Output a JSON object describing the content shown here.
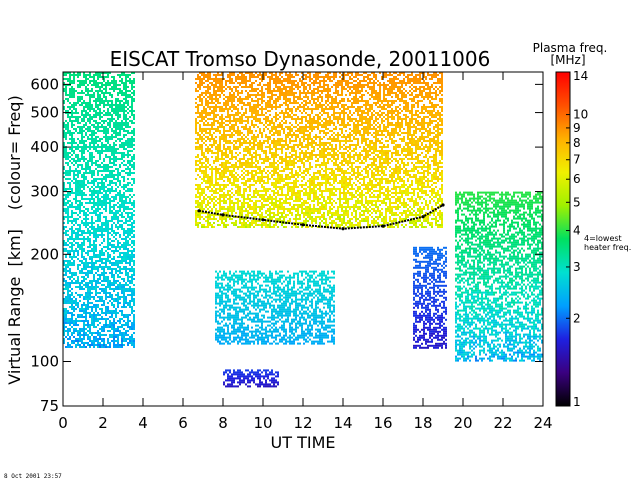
{
  "chart_data": {
    "type": "heatmap",
    "title": "EISCAT Tromso Dynasonde,  20011006",
    "xlabel": "UT TIME",
    "ylabel": "Virtual Range",
    "ylabel_unit": "km",
    "ylabel_note": "(colour= Freq)",
    "x_range": [
      0,
      24
    ],
    "y_range": [
      75,
      650
    ],
    "y_scale": "log",
    "x_ticks": [
      0,
      2,
      4,
      6,
      8,
      10,
      12,
      14,
      16,
      18,
      20,
      22,
      24
    ],
    "y_ticks": [
      75,
      100,
      200,
      300,
      400,
      500,
      600
    ],
    "grid": false,
    "colorbar": {
      "title_line1": "Plasma freq.",
      "title_line2": "[MHz]",
      "range": [
        1,
        14
      ],
      "scale": "log",
      "ticks": [
        1,
        2,
        3,
        4,
        5,
        6,
        7,
        8,
        9,
        10,
        14
      ],
      "annotation_line1": "4=lowest",
      "annotation_line2": "heater freq.",
      "colors": [
        "#000000",
        "#3a0080",
        "#1e20e0",
        "#00a0ff",
        "#00e0d0",
        "#00e060",
        "#a0f000",
        "#f0f000",
        "#ffb000",
        "#ff5000",
        "#ff0000"
      ]
    },
    "echo_regions": [
      {
        "t_start": 0.0,
        "t_end": 3.6,
        "range_low": 110,
        "range_high": 650,
        "freq_low": 2.0,
        "freq_high": 3.5
      },
      {
        "t_start": 6.6,
        "t_end": 19.0,
        "range_low": 240,
        "range_high": 650,
        "freq_low": 5.0,
        "freq_high": 9.0
      },
      {
        "t_start": 7.6,
        "t_end": 13.6,
        "range_low": 112,
        "range_high": 180,
        "freq_low": 2.2,
        "freq_high": 2.8
      },
      {
        "t_start": 17.5,
        "t_end": 19.2,
        "range_low": 110,
        "range_high": 210,
        "freq_low": 1.5,
        "freq_high": 2.0
      },
      {
        "t_start": 19.6,
        "t_end": 24.0,
        "range_low": 100,
        "range_high": 300,
        "freq_low": 2.0,
        "freq_high": 4.0
      },
      {
        "t_start": 8.0,
        "t_end": 10.8,
        "range_low": 85,
        "range_high": 95,
        "freq_low": 1.5,
        "freq_high": 1.8
      }
    ],
    "layer_trace": [
      {
        "t": 6.8,
        "range": 265
      },
      {
        "t": 8.0,
        "range": 258
      },
      {
        "t": 10.0,
        "range": 250
      },
      {
        "t": 12.0,
        "range": 242
      },
      {
        "t": 14.0,
        "range": 236
      },
      {
        "t": 16.0,
        "range": 240
      },
      {
        "t": 18.0,
        "range": 255
      },
      {
        "t": 19.0,
        "range": 275
      }
    ]
  },
  "footer": {
    "timestamp": "8 Oct 2001 23:57"
  }
}
